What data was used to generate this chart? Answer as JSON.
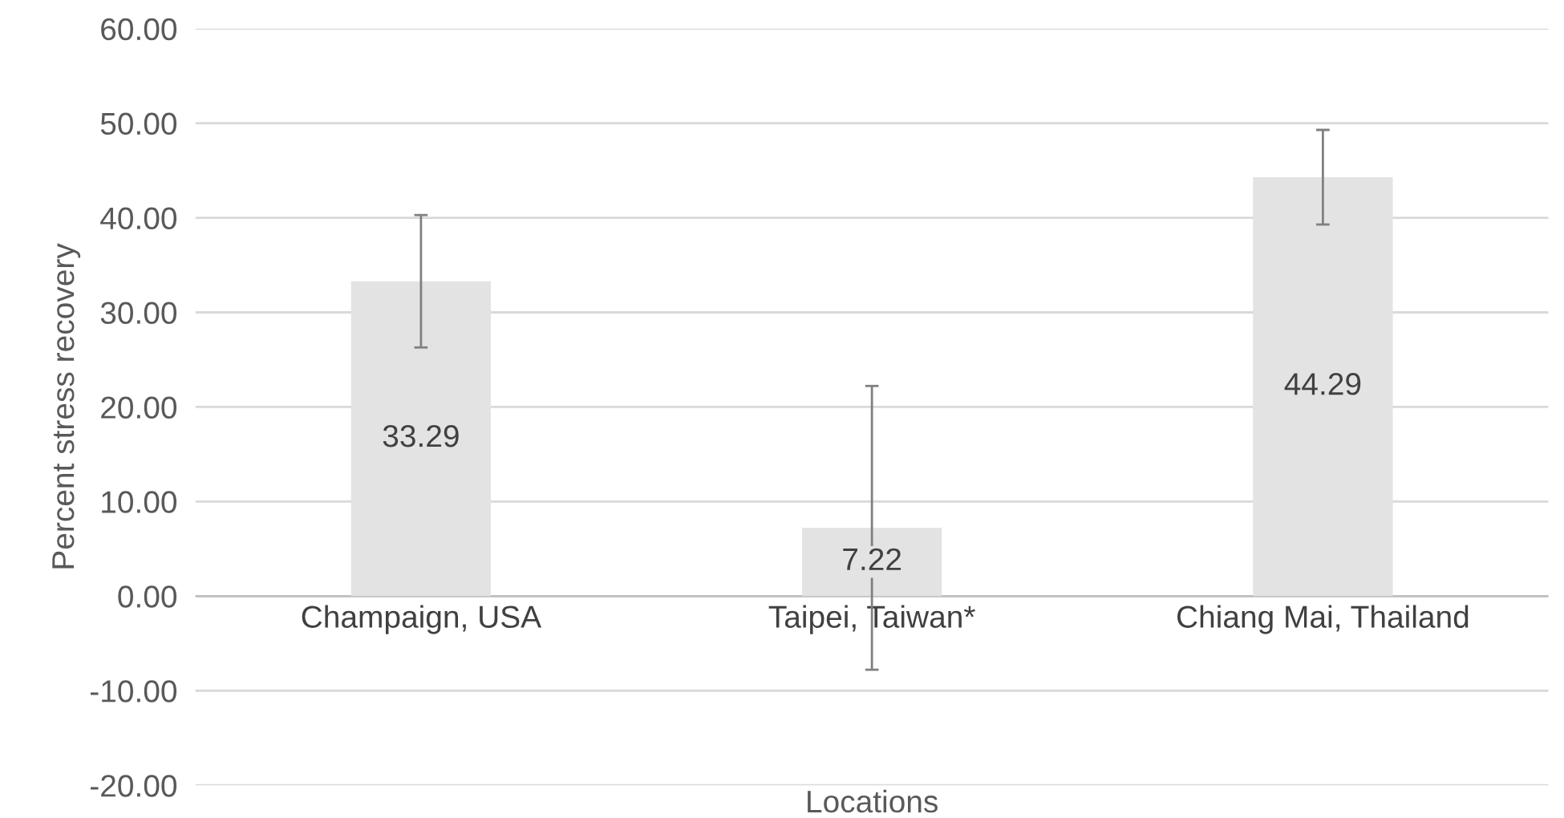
{
  "chart_data": {
    "type": "bar",
    "xlabel": "Locations",
    "ylabel": "Percent stress recovery",
    "categories": [
      "Champaign, USA",
      "Taipei, Taiwan*",
      "Chiang Mai, Thailand"
    ],
    "values": [
      33.29,
      7.22,
      44.29
    ],
    "color": "#e3e3e3",
    "errors": [
      7.0,
      15.0,
      5.0
    ],
    "data_labels": true,
    "ylim": [
      -20,
      60
    ],
    "yticks": [
      {
        "value": -20,
        "label": "-20.00"
      },
      {
        "value": -10,
        "label": "-10.00"
      },
      {
        "value": 0,
        "label": "0.00"
      },
      {
        "value": 10,
        "label": "10.00"
      },
      {
        "value": 20,
        "label": "20.00"
      },
      {
        "value": 30,
        "label": "30.00"
      },
      {
        "value": 40,
        "label": "40.00"
      },
      {
        "value": 50,
        "label": "50.00"
      },
      {
        "value": 60,
        "label": "60.00"
      }
    ],
    "grid": "y"
  }
}
